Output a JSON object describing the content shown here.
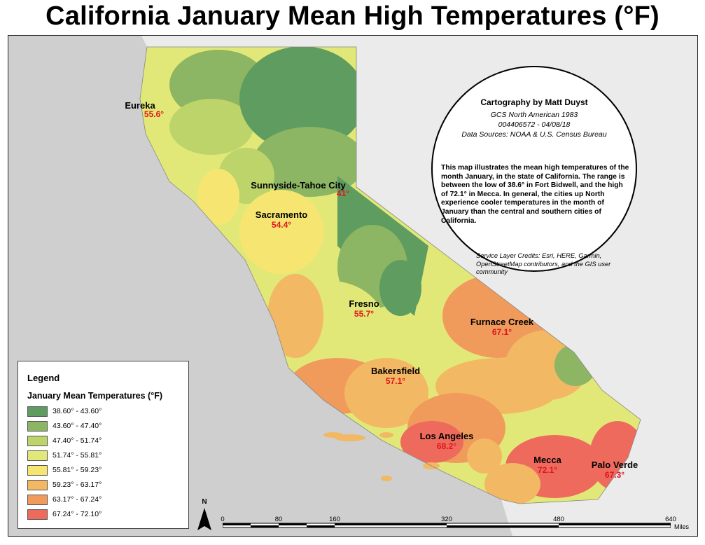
{
  "title": "California January Mean High Temperatures (°F)",
  "colors": {
    "ocean": "#cfcfcf",
    "land_outside": "#ebebeb",
    "class_1": "#5f9c5f",
    "class_2": "#8cb564",
    "class_3": "#bcd46a",
    "class_4": "#e2e877",
    "class_5": "#f6e671",
    "class_6": "#f2b864",
    "class_7": "#f09a5c",
    "class_8": "#ee6a5c",
    "temp_label": "#e2141c"
  },
  "cities": [
    {
      "name": "Eureka",
      "temp": "55.6°"
    },
    {
      "name": "Sunnyside-Tahoe City",
      "temp": "41°"
    },
    {
      "name": "Sacramento",
      "temp": "54.4°"
    },
    {
      "name": "Fresno",
      "temp": "55.7°"
    },
    {
      "name": "Furnace Creek",
      "temp": "67.1°"
    },
    {
      "name": "Bakersfield",
      "temp": "57.1°"
    },
    {
      "name": "Los Angeles",
      "temp": "68.2°"
    },
    {
      "name": "Mecca",
      "temp": "72.1°"
    },
    {
      "name": "Palo Verde",
      "temp": "67.3°"
    }
  ],
  "credits": {
    "title": "Cartography by Matt Duyst",
    "projection": "GCS North American 1983",
    "id_date": "004406572 - 04/08/18",
    "sources": "Data Sources: NOAA & U.S. Census Bureau",
    "description": "This map illustrates the mean high temperatures of the month January, in the state of California. The range is between the low of 38.6° in Fort Bidwell, and the high of 72.1° in Mecca. In general, the cities up North experience cooler temperatures in the month of January than the central and southern cities of California.",
    "service": "Service Layer Credits: Esri, HERE, Garmin, OpenStreetMap contributors, and the GIS user community"
  },
  "legend": {
    "title": "Legend",
    "subtitle": "January Mean Temperatures (°F)",
    "classes": [
      {
        "label": "38.60° - 43.60°",
        "color": "#5f9c5f"
      },
      {
        "label": "43.60° - 47.40°",
        "color": "#8cb564"
      },
      {
        "label": "47.40° - 51.74°",
        "color": "#bcd46a"
      },
      {
        "label": "51.74° - 55.81°",
        "color": "#e2e877"
      },
      {
        "label": "55.81° - 59.23°",
        "color": "#f6e671"
      },
      {
        "label": "59.23° - 63.17°",
        "color": "#f2b864"
      },
      {
        "label": "63.17° - 67.24°",
        "color": "#f09a5c"
      },
      {
        "label": "67.24° - 72.10°",
        "color": "#ee6a5c"
      }
    ]
  },
  "north_arrow": "N",
  "scale": {
    "ticks": [
      "0",
      "80",
      "160",
      "320",
      "480",
      "640"
    ],
    "units": "Miles"
  }
}
